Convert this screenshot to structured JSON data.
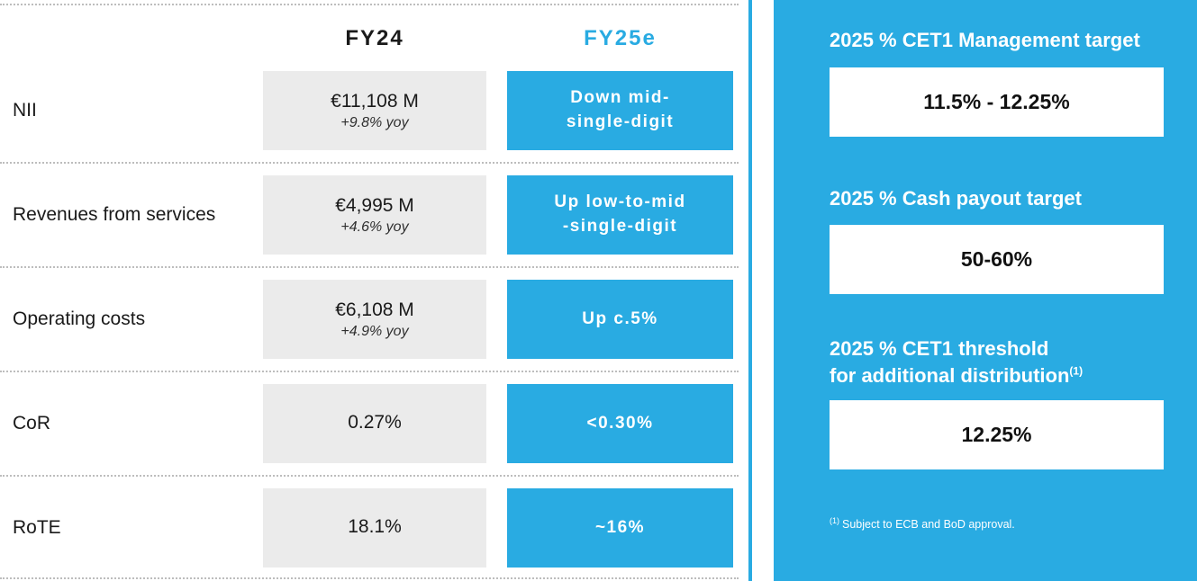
{
  "colors": {
    "accent_blue": "#29abe2",
    "box_gray": "#ebebeb",
    "dotted_line": "#bdbdbd",
    "text_dark": "#1a1a1a"
  },
  "guidance_table": {
    "columns": {
      "fy24": "FY24",
      "fy25e": "FY25e"
    },
    "rows": [
      {
        "label": "NII",
        "fy24": "€11,108 M",
        "fy24_yoy": "+9.8% yoy",
        "fy25e": "Down mid-\nsingle-digit"
      },
      {
        "label": "Revenues from services",
        "fy24": "€4,995 M",
        "fy24_yoy": "+4.6% yoy",
        "fy25e": "Up low-to-mid\n-single-digit"
      },
      {
        "label": "Operating costs",
        "fy24": "€6,108 M",
        "fy24_yoy": "+4.9% yoy",
        "fy25e": "Up c.5%"
      },
      {
        "label": "CoR",
        "fy24": "0.27%",
        "fy25e": "<0.30%"
      },
      {
        "label": "RoTE",
        "fy24": "18.1%",
        "fy25e": "~16%"
      }
    ]
  },
  "targets_panel": {
    "items": [
      {
        "title": "2025 % CET1 Management target",
        "value": "11.5% - 12.25%"
      },
      {
        "title": "2025 % Cash payout target",
        "value": "50-60%"
      },
      {
        "title": "2025 % CET1 threshold\nfor additional distribution",
        "title_sup": "(1)",
        "value": "12.25%"
      }
    ],
    "footnote_marker": "(1)",
    "footnote_text": "Subject to ECB and BoD approval."
  }
}
